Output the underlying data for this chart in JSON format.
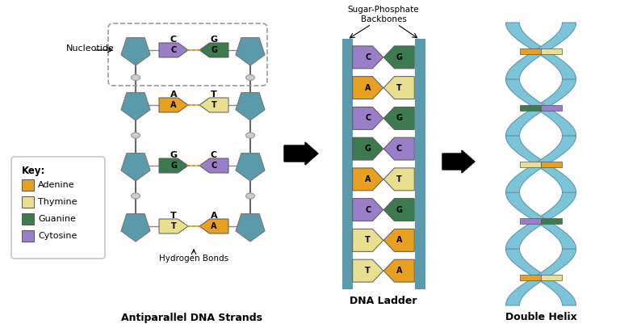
{
  "bg_color": "#ffffff",
  "teal": "#5b9aab",
  "adenine_color": "#e8a020",
  "thymine_color": "#e8e090",
  "guanine_color": "#3d7a50",
  "cytosine_color": "#9b7ec8",
  "ellipse_color": "#cccccc",
  "strand_pairs": [
    {
      "left": "C",
      "right": "G",
      "left_color": "#9b7ec8",
      "right_color": "#3d7a50"
    },
    {
      "left": "A",
      "right": "T",
      "left_color": "#e8a020",
      "right_color": "#e8e090"
    },
    {
      "left": "G",
      "right": "C",
      "left_color": "#3d7a50",
      "right_color": "#9b7ec8"
    },
    {
      "left": "T",
      "right": "A",
      "left_color": "#e8e090",
      "right_color": "#e8a020"
    }
  ],
  "ladder_pairs": [
    {
      "left": "C",
      "right": "G",
      "left_color": "#9b7ec8",
      "right_color": "#3d7a50"
    },
    {
      "left": "A",
      "right": "T",
      "left_color": "#e8a020",
      "right_color": "#e8e090"
    },
    {
      "left": "C",
      "right": "G",
      "left_color": "#9b7ec8",
      "right_color": "#3d7a50"
    },
    {
      "left": "G",
      "right": "C",
      "left_color": "#3d7a50",
      "right_color": "#9b7ec8"
    },
    {
      "left": "A",
      "right": "T",
      "left_color": "#e8a020",
      "right_color": "#e8e090"
    },
    {
      "left": "C",
      "right": "G",
      "left_color": "#9b7ec8",
      "right_color": "#3d7a50"
    },
    {
      "left": "T",
      "right": "A",
      "left_color": "#e8e090",
      "right_color": "#e8a020"
    },
    {
      "left": "T",
      "right": "A",
      "left_color": "#e8e090",
      "right_color": "#e8a020"
    }
  ],
  "title_antiparallel": "Antiparallel DNA Strands",
  "title_ladder": "DNA Ladder",
  "title_helix": "Double Helix",
  "label_nucleotide": "Nucleotide",
  "label_hbonds": "Hydrogen Bonds",
  "label_backbone": "Sugar-Phosphate\nBackbones",
  "key_items": [
    {
      "label": "Adenine",
      "color": "#e8a020"
    },
    {
      "label": "Thymine",
      "color": "#e8e090"
    },
    {
      "label": "Guanine",
      "color": "#3d7a50"
    },
    {
      "label": "Cytosine",
      "color": "#9b7ec8"
    }
  ],
  "helix_color": "#7dc4d8",
  "helix_edge_color": "#5b9aab"
}
